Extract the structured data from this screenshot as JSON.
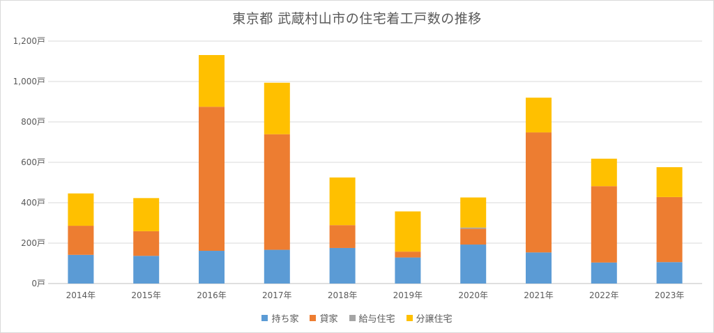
{
  "chart_data": {
    "type": "bar",
    "stacked": true,
    "title": "東京都 武蔵村山市の住宅着工戸数の推移",
    "xlabel": "",
    "ylabel": "",
    "ylim": [
      0,
      1200
    ],
    "yticks": [
      "0戸",
      "200戸",
      "400戸",
      "600戸",
      "800戸",
      "1,000戸",
      "1,200戸"
    ],
    "categories": [
      "2014年",
      "2015年",
      "2016年",
      "2017年",
      "2018年",
      "2019年",
      "2020年",
      "2021年",
      "2022年",
      "2023年"
    ],
    "series": [
      {
        "name": "持ち家",
        "color": "#5b9bd5",
        "values": [
          142,
          137,
          162,
          167,
          176,
          129,
          193,
          154,
          104,
          106
        ]
      },
      {
        "name": "貸家",
        "color": "#ed7d31",
        "values": [
          144,
          122,
          713,
          572,
          113,
          29,
          78,
          594,
          378,
          322
        ]
      },
      {
        "name": "給与住宅",
        "color": "#a5a5a5",
        "values": [
          0,
          0,
          0,
          0,
          0,
          0,
          6,
          0,
          0,
          0
        ]
      },
      {
        "name": "分譲住宅",
        "color": "#ffc000",
        "values": [
          160,
          164,
          256,
          255,
          236,
          199,
          149,
          172,
          136,
          148
        ]
      }
    ],
    "grid": true,
    "legend_position": "bottom"
  }
}
